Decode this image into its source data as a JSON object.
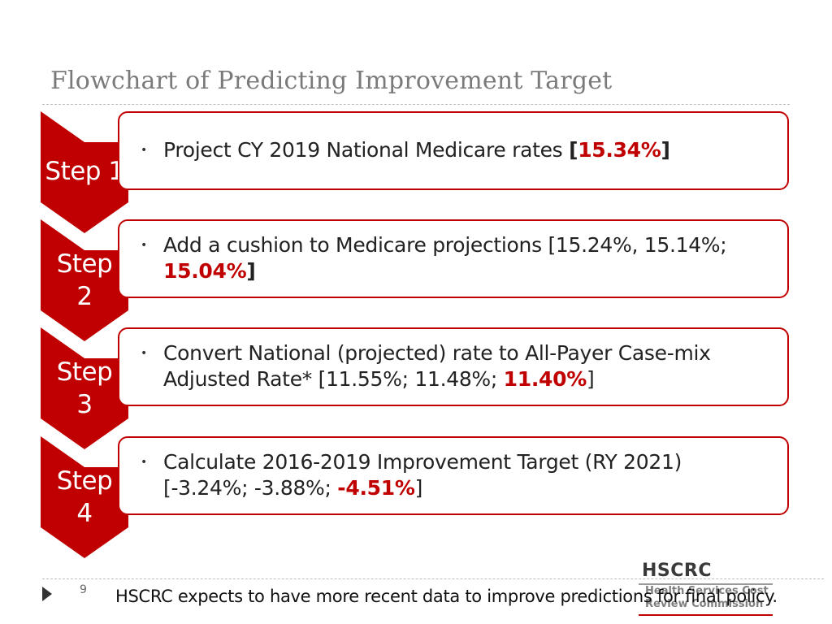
{
  "title": "Flowchart of Predicting Improvement Target",
  "colors": {
    "accent": "#c00000",
    "title_gray": "#7a7a7a"
  },
  "steps": [
    {
      "label": "Step 1",
      "label_lines": [
        "Step 1"
      ],
      "bullet": "•",
      "text_before": "Project CY 2019 National Medicare rates ",
      "bracket_open": "[",
      "highlight": "15.34%",
      "bracket_close": "]"
    },
    {
      "label": "Step 2",
      "label_lines": [
        "Step",
        "2"
      ],
      "bullet": "•",
      "text_before": "Add a cushion to Medicare projections [15.24%, 15.14%; ",
      "highlight": "15.04%",
      "bracket_close": "]"
    },
    {
      "label": "Step 3",
      "label_lines": [
        "Step",
        "3"
      ],
      "bullet": "•",
      "text_before": "Convert National (projected) rate to All-Payer Case-mix Adjusted Rate* [11.55%; 11.48%; ",
      "highlight": "11.40%",
      "bracket_close": "]"
    },
    {
      "label": "Step 4",
      "label_lines": [
        "Step",
        "4"
      ],
      "bullet": "•",
      "text_before": "Calculate 2016-2019 Improvement Target (RY 2021) [-3.24%; -3.88%; ",
      "highlight": "-4.51%",
      "bracket_close": "]"
    }
  ],
  "footer": {
    "page_number": "9",
    "note": "HSCRC expects to have more recent data to improve predictions for final policy."
  },
  "logo": {
    "brand": "HSCRC",
    "line1": "Health Services Cost",
    "line2": "Review Commission"
  }
}
